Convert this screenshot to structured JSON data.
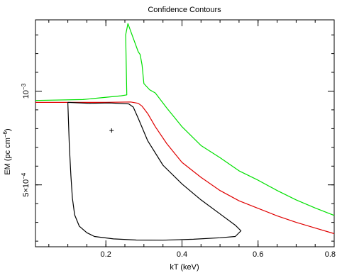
{
  "chart_data": {
    "type": "line",
    "title": "Confidence Contours",
    "xlabel": "kT (keV)",
    "ylabel_main": "EM (pc cm",
    "ylabel_sup": "−6",
    "ylabel_close": ")",
    "xlim": [
      0.015,
      0.8
    ],
    "ylim": [
      0.00017,
      0.00138
    ],
    "x_ticks": [
      {
        "value": 0.2,
        "label": "0.2"
      },
      {
        "value": 0.4,
        "label": "0.4"
      },
      {
        "value": 0.6,
        "label": "0.6"
      },
      {
        "value": 0.8,
        "label": "0.8"
      }
    ],
    "x_minor_step": 0.05,
    "y_ticks": [
      {
        "value": 0.0005,
        "mantissa": "5×10",
        "exp": "−4"
      },
      {
        "value": 0.001,
        "mantissa": "10",
        "exp": "−3"
      }
    ],
    "y_minor_step": 0.0001,
    "best_fit": {
      "x": 0.215,
      "y": 0.00079,
      "symbol": "+"
    },
    "series": [
      {
        "color": "#00e000",
        "x": [
          0.015,
          0.14,
          0.24,
          0.255,
          0.252,
          0.258,
          0.285,
          0.29,
          0.295,
          0.3,
          0.315,
          0.33,
          0.36,
          0.4,
          0.45,
          0.5,
          0.55,
          0.6,
          0.65,
          0.7,
          0.75,
          0.8
        ],
        "y": [
          0.00095,
          0.000955,
          0.000975,
          0.00098,
          0.0013,
          0.00136,
          0.00121,
          0.001195,
          0.00114,
          0.00104,
          0.001007,
          0.00099,
          0.00091,
          0.00081,
          0.00071,
          0.000645,
          0.000575,
          0.000525,
          0.00047,
          0.00042,
          0.000377,
          0.000337
        ]
      },
      {
        "color": "#e00000",
        "x": [
          0.015,
          0.1,
          0.2,
          0.265,
          0.285,
          0.295,
          0.31,
          0.33,
          0.36,
          0.4,
          0.45,
          0.5,
          0.55,
          0.6,
          0.65,
          0.7,
          0.75,
          0.8
        ],
        "y": [
          0.00094,
          0.00094,
          0.00094,
          0.000942,
          0.000935,
          0.00092,
          0.00088,
          0.00081,
          0.00072,
          0.00062,
          0.00054,
          0.00047,
          0.000415,
          0.000375,
          0.000335,
          0.0003,
          0.00027,
          0.00024
        ]
      },
      {
        "color": "#000000",
        "x": [
          0.1,
          0.155,
          0.21,
          0.26,
          0.272,
          0.285,
          0.31,
          0.35,
          0.4,
          0.45,
          0.5,
          0.54,
          0.555,
          0.54,
          0.5,
          0.43,
          0.35,
          0.28,
          0.22,
          0.17,
          0.15,
          0.13,
          0.118,
          0.112,
          0.108,
          0.104,
          0.1
        ],
        "y": [
          0.00094,
          0.000935,
          0.000937,
          0.000932,
          0.000915,
          0.000855,
          0.000735,
          0.000605,
          0.000505,
          0.00042,
          0.000345,
          0.000285,
          0.000255,
          0.000225,
          0.000218,
          0.00021,
          0.000205,
          0.000206,
          0.000212,
          0.000225,
          0.000245,
          0.00028,
          0.00034,
          0.00043,
          0.00055,
          0.00071,
          0.00094
        ]
      }
    ]
  }
}
